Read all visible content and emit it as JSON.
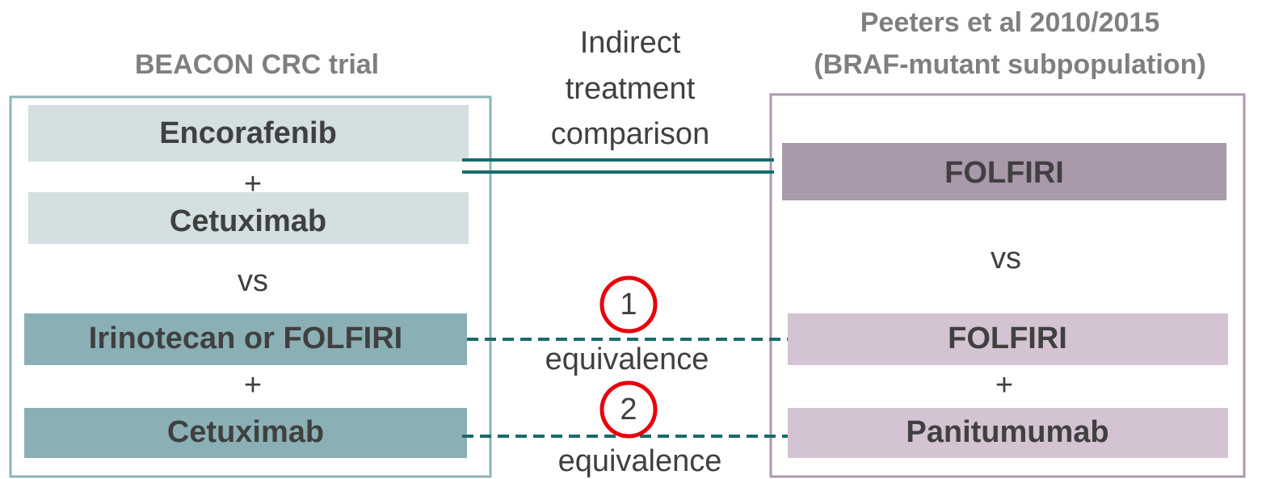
{
  "left": {
    "title": "BEACON CRC trial",
    "items": [
      "Encorafenib",
      "+",
      "Cetuximab",
      "vs",
      "Irinotecan or FOLFIRI",
      "+",
      "Cetuximab"
    ]
  },
  "right": {
    "title": [
      "Peeters et al 2010/2015",
      "(BRAF-mutant subpopulation)"
    ],
    "items": [
      "FOLFIRI",
      "vs",
      "FOLFIRI",
      "+",
      "Panitumumab"
    ]
  },
  "middle": {
    "label": [
      "Indirect",
      "treatment",
      "comparison"
    ],
    "links": [
      {
        "number": "1",
        "label": "equivalence"
      },
      {
        "number": "2",
        "label": "equivalence"
      }
    ]
  }
}
